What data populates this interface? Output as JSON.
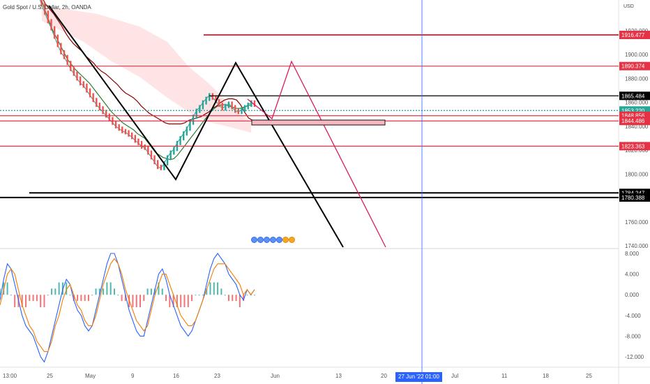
{
  "header": {
    "title": "Gold Spot / U.S. Dollar, 2h, OANDA",
    "currency": "USD"
  },
  "crosshair": {
    "label": "27 Jun '22   01:00",
    "color": "#2962ff"
  },
  "events": [
    {
      "icon": "flag-blue-icon",
      "color": "#5b8ff9"
    },
    {
      "icon": "flag-blue-icon",
      "color": "#5b8ff9"
    },
    {
      "icon": "flag-blue-icon",
      "color": "#5b8ff9"
    },
    {
      "icon": "flag-blue-icon",
      "color": "#5b8ff9"
    },
    {
      "icon": "flag-blue-icon",
      "color": "#5b8ff9"
    },
    {
      "icon": "flag-orange-icon",
      "color": "#f6a623"
    },
    {
      "icon": "flag-orange-icon",
      "color": "#f6a623"
    }
  ],
  "chart_data": [
    {
      "type": "line",
      "title": "Gold Spot / U.S. Dollar, 2h, OANDA",
      "y_unit": "USD",
      "ylim": [
        1725,
        1935
      ],
      "y_ticks": [
        "1920.000",
        "1900.000",
        "1880.000",
        "1860.000",
        "1840.000",
        "1820.000",
        "1800.000",
        "1780.000",
        "1760.000",
        "1740.000"
      ],
      "x_ticks": [
        "13:00",
        "25",
        "May",
        "9",
        "16",
        "23",
        "Jun",
        "13",
        "20",
        "Jul",
        "11",
        "18",
        "25"
      ],
      "price_levels": [
        {
          "value": 1916.477,
          "label": "1916.477",
          "color": "#e53345"
        },
        {
          "value": 1890.374,
          "label": "1890.374",
          "color": "#e53345"
        },
        {
          "value": 1865.484,
          "label": "1865.484",
          "color": "#000000"
        },
        {
          "value": 1853.22,
          "label": "1853.220",
          "color": "#26a69a"
        },
        {
          "value": 1848.856,
          "label": "1848.856",
          "color": "#e53345"
        },
        {
          "value": 1844.486,
          "label": "1844.486",
          "color": "#e53345"
        },
        {
          "value": 1823.363,
          "label": "1823.363",
          "color": "#e53345"
        },
        {
          "value": 1784.247,
          "label": "1784.247",
          "color": "#000000"
        },
        {
          "value": 1780.388,
          "label": "1780.388",
          "color": "#000000"
        }
      ],
      "series": [
        {
          "role": "price",
          "color": "#26a69a",
          "values": [
            1950,
            1942,
            1935,
            1928,
            1922,
            1915,
            1908,
            1902,
            1898,
            1893,
            1888,
            1884,
            1880,
            1876,
            1874,
            1870,
            1866,
            1862,
            1858,
            1855,
            1852,
            1849,
            1846,
            1843,
            1840,
            1838,
            1836,
            1835,
            1833,
            1831,
            1828,
            1826,
            1823,
            1822,
            1818,
            1814,
            1810,
            1806,
            1805,
            1809,
            1814,
            1818,
            1821,
            1826,
            1830,
            1834,
            1838,
            1843,
            1848,
            1853,
            1856,
            1860,
            1863,
            1866,
            1864,
            1861,
            1858,
            1855,
            1857,
            1859,
            1856,
            1853,
            1852,
            1854,
            1856,
            1858,
            1860,
            1858
          ]
        },
        {
          "role": "conversion-line",
          "color": "#2e7d32",
          "values": [
            1945,
            1936,
            1928,
            1920,
            1914,
            1908,
            1902,
            1896,
            1892,
            1888,
            1885,
            1882,
            1879,
            1876,
            1872,
            1868,
            1864,
            1860,
            1856,
            1852,
            1849,
            1846,
            1843,
            1841,
            1839,
            1837,
            1834,
            1832,
            1830,
            1826,
            1822,
            1818,
            1816,
            1814,
            1813,
            1812,
            1813,
            1816,
            1820,
            1824,
            1828,
            1832,
            1836,
            1840,
            1844,
            1848,
            1852,
            1855,
            1857,
            1858,
            1858,
            1857,
            1856,
            1855,
            1855,
            1856,
            1857,
            1858
          ]
        },
        {
          "role": "base-line",
          "color": "#8b0000",
          "values": [
            1948,
            1942,
            1938,
            1934,
            1929,
            1924,
            1918,
            1913,
            1909,
            1906,
            1903,
            1899,
            1896,
            1893,
            1889,
            1886,
            1884,
            1881,
            1878,
            1875,
            1871,
            1868,
            1866,
            1864,
            1861,
            1857,
            1854,
            1851,
            1849,
            1847,
            1845,
            1843,
            1842,
            1842,
            1842,
            1842,
            1843,
            1845,
            1846,
            1847,
            1848,
            1850,
            1852,
            1855,
            1857,
            1860,
            1862,
            1863,
            1863,
            1862,
            1858,
            1852,
            1847,
            1845
          ]
        }
      ],
      "cloud": {
        "color": "#ffcdd2"
      },
      "drawn_paths": [
        {
          "color": "#000000",
          "points": [
            [
              0,
              1952
            ],
            [
              0,
              1953
            ]
          ]
        },
        {
          "color": "#d81b60",
          "points": [
            [
              0,
              0
            ]
          ]
        }
      ]
    },
    {
      "type": "line",
      "role": "oscillator",
      "ylim": [
        -13.5,
        9.5
      ],
      "y_ticks": [
        "8.000",
        "4.000",
        "0.000",
        "-4.000",
        "-8.000",
        "-12.000"
      ],
      "series": [
        {
          "name": "",
          "color": "#2962ff",
          "values": [
            -1,
            3,
            6,
            5,
            2,
            -1,
            -4,
            -6,
            -7,
            -8,
            -10,
            -12,
            -13,
            -11,
            -8,
            -5,
            -2,
            1,
            3,
            2,
            -1,
            -3,
            -4,
            -6,
            -7,
            -6,
            -3,
            0,
            3,
            6,
            8,
            8,
            6,
            3,
            0,
            -3,
            -5,
            -7,
            -8,
            -8,
            -5,
            -2,
            1,
            4,
            5,
            3,
            0,
            -2,
            -4,
            -6,
            -7,
            -8,
            -7,
            -5,
            -3,
            -1,
            2,
            5,
            7,
            8,
            7,
            6,
            4,
            3,
            2,
            0,
            -1,
            1,
            0,
            1
          ]
        },
        {
          "name": "",
          "color": "#f57c00",
          "values": [
            -2,
            1,
            4,
            5,
            4,
            1,
            -2,
            -4,
            -6,
            -7,
            -9,
            -10,
            -11,
            -11,
            -9,
            -6,
            -4,
            -1,
            1,
            2,
            0,
            -2,
            -3,
            -5,
            -6,
            -6,
            -4,
            -1,
            2,
            4,
            6,
            7,
            6,
            4,
            1,
            -1,
            -3,
            -5,
            -6,
            -7,
            -6,
            -3,
            0,
            2,
            4,
            4,
            2,
            0,
            -2,
            -4,
            -5,
            -6,
            -6,
            -5,
            -3,
            -1,
            1,
            3,
            5,
            6,
            6,
            6,
            5,
            4,
            3,
            2,
            0,
            1,
            0,
            1
          ]
        }
      ]
    }
  ]
}
